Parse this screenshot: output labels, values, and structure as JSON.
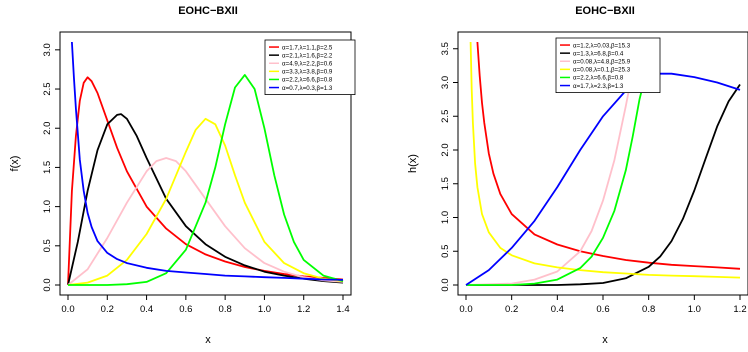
{
  "chart_data": [
    {
      "type": "line",
      "title": "EOHC−BXII",
      "xlabel": "x",
      "ylabel": "f(x)",
      "xlim": [
        0,
        1.4
      ],
      "ylim": [
        0,
        3.1
      ],
      "xticks": [
        "0.0",
        "0.2",
        "0.4",
        "0.6",
        "0.8",
        "1.0",
        "1.2",
        "1.4"
      ],
      "yticks": [
        "0.0",
        "0.5",
        "1.0",
        "1.5",
        "2.0",
        "2.5",
        "3.0"
      ],
      "grid": false,
      "legend_position": "top-right",
      "series": [
        {
          "name": "α=1.7,λ=1.1,β=2.5",
          "color": "#ff0000",
          "x": [
            0.0,
            0.02,
            0.04,
            0.06,
            0.08,
            0.1,
            0.12,
            0.15,
            0.2,
            0.25,
            0.3,
            0.4,
            0.5,
            0.6,
            0.7,
            0.8,
            0.9,
            1.0,
            1.1,
            1.2,
            1.3,
            1.4
          ],
          "y": [
            0.0,
            1.2,
            1.9,
            2.35,
            2.58,
            2.65,
            2.6,
            2.45,
            2.1,
            1.75,
            1.45,
            1.0,
            0.72,
            0.52,
            0.39,
            0.3,
            0.23,
            0.18,
            0.14,
            0.11,
            0.09,
            0.07
          ]
        },
        {
          "name": "α=2.1,λ=1.6,β=2.2",
          "color": "#000000",
          "x": [
            0.0,
            0.05,
            0.1,
            0.15,
            0.2,
            0.25,
            0.27,
            0.3,
            0.35,
            0.4,
            0.5,
            0.6,
            0.7,
            0.8,
            0.9,
            1.0,
            1.1,
            1.2,
            1.3,
            1.4
          ],
          "y": [
            0.0,
            0.55,
            1.2,
            1.72,
            2.05,
            2.17,
            2.18,
            2.12,
            1.9,
            1.62,
            1.1,
            0.75,
            0.52,
            0.36,
            0.25,
            0.17,
            0.12,
            0.08,
            0.05,
            0.03
          ]
        },
        {
          "name": "α=4.9,λ=2.2,β=0.6",
          "color": "#ffc0cb",
          "x": [
            0.0,
            0.1,
            0.2,
            0.3,
            0.4,
            0.45,
            0.5,
            0.55,
            0.6,
            0.7,
            0.8,
            0.9,
            1.0,
            1.1,
            1.2,
            1.3,
            1.4
          ],
          "y": [
            0.0,
            0.2,
            0.6,
            1.05,
            1.45,
            1.58,
            1.62,
            1.58,
            1.45,
            1.1,
            0.75,
            0.47,
            0.28,
            0.17,
            0.1,
            0.06,
            0.04
          ]
        },
        {
          "name": "α=3.3,λ=3.8,β=0.9",
          "color": "#ffff00",
          "x": [
            0.0,
            0.1,
            0.2,
            0.3,
            0.4,
            0.5,
            0.6,
            0.65,
            0.7,
            0.75,
            0.8,
            0.85,
            0.9,
            1.0,
            1.1,
            1.2,
            1.3,
            1.4
          ],
          "y": [
            0.0,
            0.03,
            0.12,
            0.32,
            0.65,
            1.1,
            1.7,
            1.98,
            2.12,
            2.05,
            1.78,
            1.4,
            1.05,
            0.55,
            0.28,
            0.15,
            0.08,
            0.05
          ]
        },
        {
          "name": "α=2.2,λ=6.6,β=0.8",
          "color": "#00ff00",
          "x": [
            0.0,
            0.2,
            0.3,
            0.4,
            0.5,
            0.6,
            0.7,
            0.75,
            0.8,
            0.85,
            0.9,
            0.95,
            1.0,
            1.05,
            1.1,
            1.15,
            1.2,
            1.3,
            1.4
          ],
          "y": [
            0.0,
            0.0,
            0.01,
            0.04,
            0.15,
            0.45,
            1.05,
            1.5,
            2.05,
            2.52,
            2.68,
            2.5,
            2.0,
            1.4,
            0.9,
            0.55,
            0.32,
            0.12,
            0.05
          ]
        },
        {
          "name": "α=0.7,λ=0.3,β=1.3",
          "color": "#0000ff",
          "x": [
            0.02,
            0.03,
            0.04,
            0.06,
            0.08,
            0.1,
            0.12,
            0.15,
            0.2,
            0.25,
            0.3,
            0.4,
            0.5,
            0.6,
            0.7,
            0.8,
            0.9,
            1.0,
            1.1,
            1.2,
            1.3,
            1.4
          ],
          "y": [
            3.1,
            2.65,
            2.25,
            1.6,
            1.2,
            0.92,
            0.74,
            0.56,
            0.41,
            0.33,
            0.28,
            0.22,
            0.18,
            0.16,
            0.14,
            0.12,
            0.11,
            0.1,
            0.09,
            0.08,
            0.07,
            0.065
          ]
        }
      ]
    },
    {
      "type": "line",
      "title": "EOHC−BXII",
      "xlabel": "x",
      "ylabel": "h(x)",
      "xlim": [
        0,
        1.2
      ],
      "ylim": [
        0,
        3.6
      ],
      "xticks": [
        "0.0",
        "0.2",
        "0.4",
        "0.6",
        "0.8",
        "1.0",
        "1.2"
      ],
      "yticks": [
        "0.0",
        "0.5",
        "1.0",
        "1.5",
        "2.0",
        "2.5",
        "3.0",
        "3.5"
      ],
      "grid": false,
      "legend_position": "top-center",
      "series": [
        {
          "name": "α=1.2,λ=0.03,β=15.3",
          "color": "#ff0000",
          "x": [
            0.05,
            0.06,
            0.07,
            0.08,
            0.1,
            0.12,
            0.15,
            0.2,
            0.3,
            0.4,
            0.5,
            0.6,
            0.7,
            0.8,
            0.9,
            1.0,
            1.1,
            1.2
          ],
          "y": [
            3.6,
            3.1,
            2.7,
            2.4,
            1.95,
            1.65,
            1.35,
            1.05,
            0.75,
            0.6,
            0.5,
            0.43,
            0.37,
            0.33,
            0.3,
            0.28,
            0.26,
            0.24
          ]
        },
        {
          "name": "α=1.3,λ=6.8,β=0.4",
          "color": "#000000",
          "x": [
            0.0,
            0.2,
            0.4,
            0.5,
            0.6,
            0.7,
            0.8,
            0.85,
            0.9,
            0.95,
            1.0,
            1.05,
            1.1,
            1.15,
            1.2
          ],
          "y": [
            0.0,
            0.0,
            0.0,
            0.01,
            0.03,
            0.1,
            0.27,
            0.42,
            0.65,
            0.98,
            1.4,
            1.88,
            2.35,
            2.72,
            2.97
          ]
        },
        {
          "name": "α=0.08,λ=4.8,β=25.9",
          "color": "#ffc0cb",
          "x": [
            0.0,
            0.2,
            0.3,
            0.4,
            0.5,
            0.55,
            0.6,
            0.65,
            0.7,
            0.72,
            0.75
          ],
          "y": [
            0.0,
            0.02,
            0.08,
            0.2,
            0.5,
            0.8,
            1.25,
            1.85,
            2.65,
            3.0,
            3.6
          ]
        },
        {
          "name": "α=0.08,λ=0.1,β=25.3",
          "color": "#ffff00",
          "x": [
            0.02,
            0.025,
            0.03,
            0.04,
            0.05,
            0.07,
            0.1,
            0.15,
            0.2,
            0.3,
            0.4,
            0.5,
            0.6,
            0.7,
            0.8,
            0.9,
            1.0,
            1.1,
            1.2
          ],
          "y": [
            3.6,
            2.9,
            2.4,
            1.8,
            1.45,
            1.05,
            0.78,
            0.55,
            0.44,
            0.32,
            0.26,
            0.22,
            0.19,
            0.17,
            0.15,
            0.14,
            0.13,
            0.12,
            0.11
          ]
        },
        {
          "name": "α=2.2,λ=6.6,β=0.8",
          "color": "#00ff00",
          "x": [
            0.0,
            0.2,
            0.3,
            0.4,
            0.5,
            0.55,
            0.6,
            0.65,
            0.7,
            0.73,
            0.76,
            0.8,
            0.83
          ],
          "y": [
            0.0,
            0.0,
            0.02,
            0.08,
            0.25,
            0.42,
            0.7,
            1.1,
            1.7,
            2.2,
            2.75,
            3.3,
            3.6
          ]
        },
        {
          "name": "α=1.7,λ=2.3,β=1.3",
          "color": "#0000ff",
          "x": [
            0.0,
            0.1,
            0.2,
            0.3,
            0.4,
            0.5,
            0.6,
            0.7,
            0.8,
            0.85,
            0.9,
            1.0,
            1.1,
            1.2
          ],
          "y": [
            0.0,
            0.22,
            0.55,
            0.95,
            1.45,
            2.0,
            2.5,
            2.88,
            3.08,
            3.13,
            3.13,
            3.08,
            3.0,
            2.89
          ]
        }
      ]
    }
  ]
}
